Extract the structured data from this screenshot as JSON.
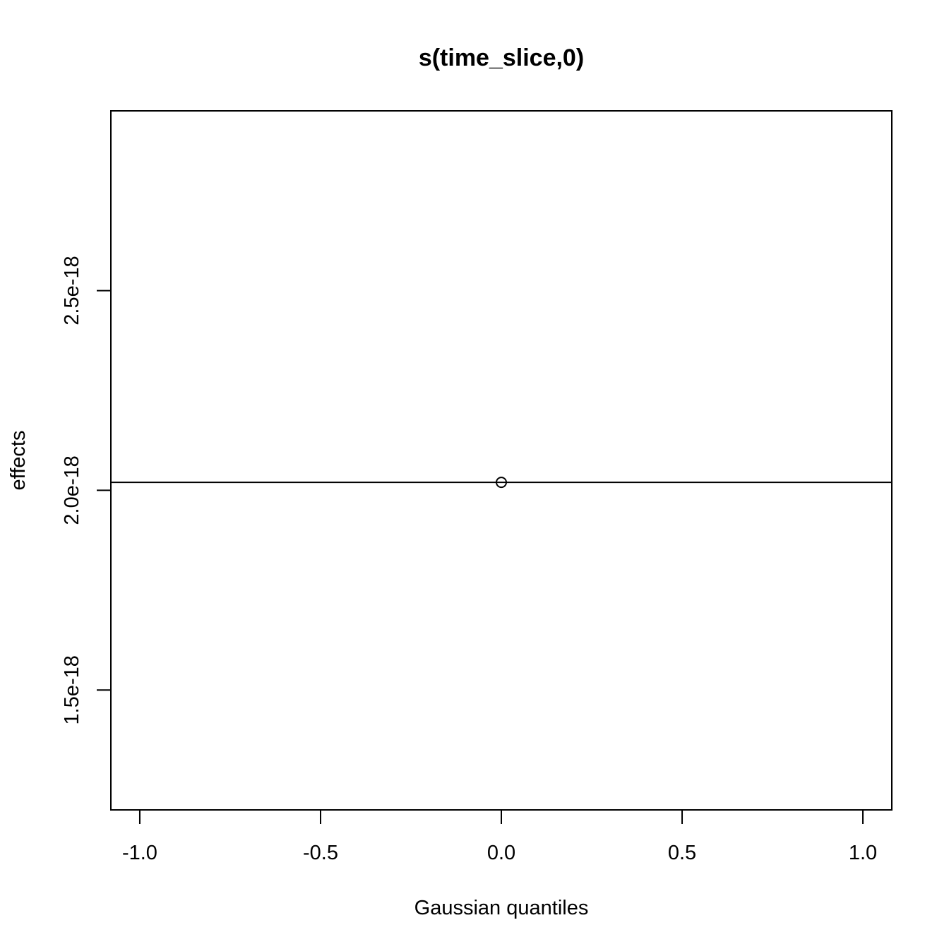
{
  "chart_data": {
    "type": "scatter",
    "title": "s(time_slice,0)",
    "xlabel": "Gaussian quantiles",
    "ylabel": "effects",
    "xlim": [
      -1.08,
      1.08
    ],
    "ylim": [
      1.2e-18,
      2.95e-18
    ],
    "x_ticks": [
      {
        "value": -1.0,
        "label": "-1.0"
      },
      {
        "value": -0.5,
        "label": "-0.5"
      },
      {
        "value": 0.0,
        "label": "0.0"
      },
      {
        "value": 0.5,
        "label": "0.5"
      },
      {
        "value": 1.0,
        "label": "1.0"
      }
    ],
    "y_ticks": [
      {
        "value": 1.5e-18,
        "label": "1.5e-18"
      },
      {
        "value": 2e-18,
        "label": "2.0e-18"
      },
      {
        "value": 2.5e-18,
        "label": "2.5e-18"
      }
    ],
    "points": [
      {
        "x": 0.0,
        "y": 2.02e-18
      }
    ],
    "reference_line": {
      "type": "horizontal",
      "y": 2.02e-18
    },
    "grid": false,
    "legend": "none",
    "colors": {
      "foreground": "#000000",
      "background": "#ffffff"
    }
  }
}
